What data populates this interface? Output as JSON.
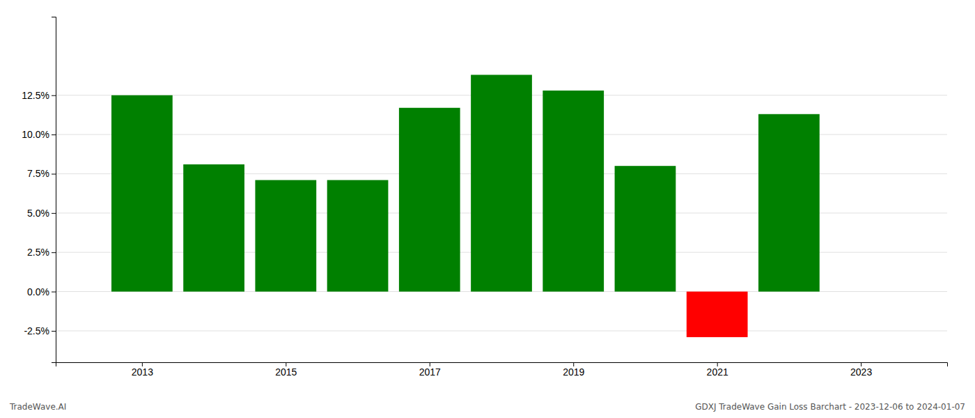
{
  "chart_data": {
    "type": "bar",
    "x": [
      2013,
      2014,
      2015,
      2016,
      2017,
      2018,
      2019,
      2020,
      2021,
      2022
    ],
    "values": [
      0.125,
      0.081,
      0.071,
      0.071,
      0.117,
      0.138,
      0.128,
      0.08,
      -0.029,
      0.113
    ],
    "colors": [
      "#008000",
      "#008000",
      "#008000",
      "#008000",
      "#008000",
      "#008000",
      "#008000",
      "#008000",
      "#ff0000",
      "#008000"
    ],
    "xlim": [
      2011.8,
      2024.2
    ],
    "xticks": [
      2013,
      2015,
      2017,
      2019,
      2021,
      2023
    ],
    "ylim": [
      -0.045,
      0.175
    ],
    "yticks": [
      {
        "value": -0.025,
        "label": "-2.5%"
      },
      {
        "value": 0.0,
        "label": "0.0%"
      },
      {
        "value": 0.025,
        "label": "2.5%"
      },
      {
        "value": 0.05,
        "label": "5.0%"
      },
      {
        "value": 0.075,
        "label": "7.5%"
      },
      {
        "value": 0.1,
        "label": "10.0%"
      },
      {
        "value": 0.125,
        "label": "12.5%"
      }
    ],
    "grid": true,
    "annotations": [
      "TradeWave.AI",
      "GDXJ TradeWave Gain Loss Barchart - 2023-12-06 to 2024-01-07"
    ]
  }
}
